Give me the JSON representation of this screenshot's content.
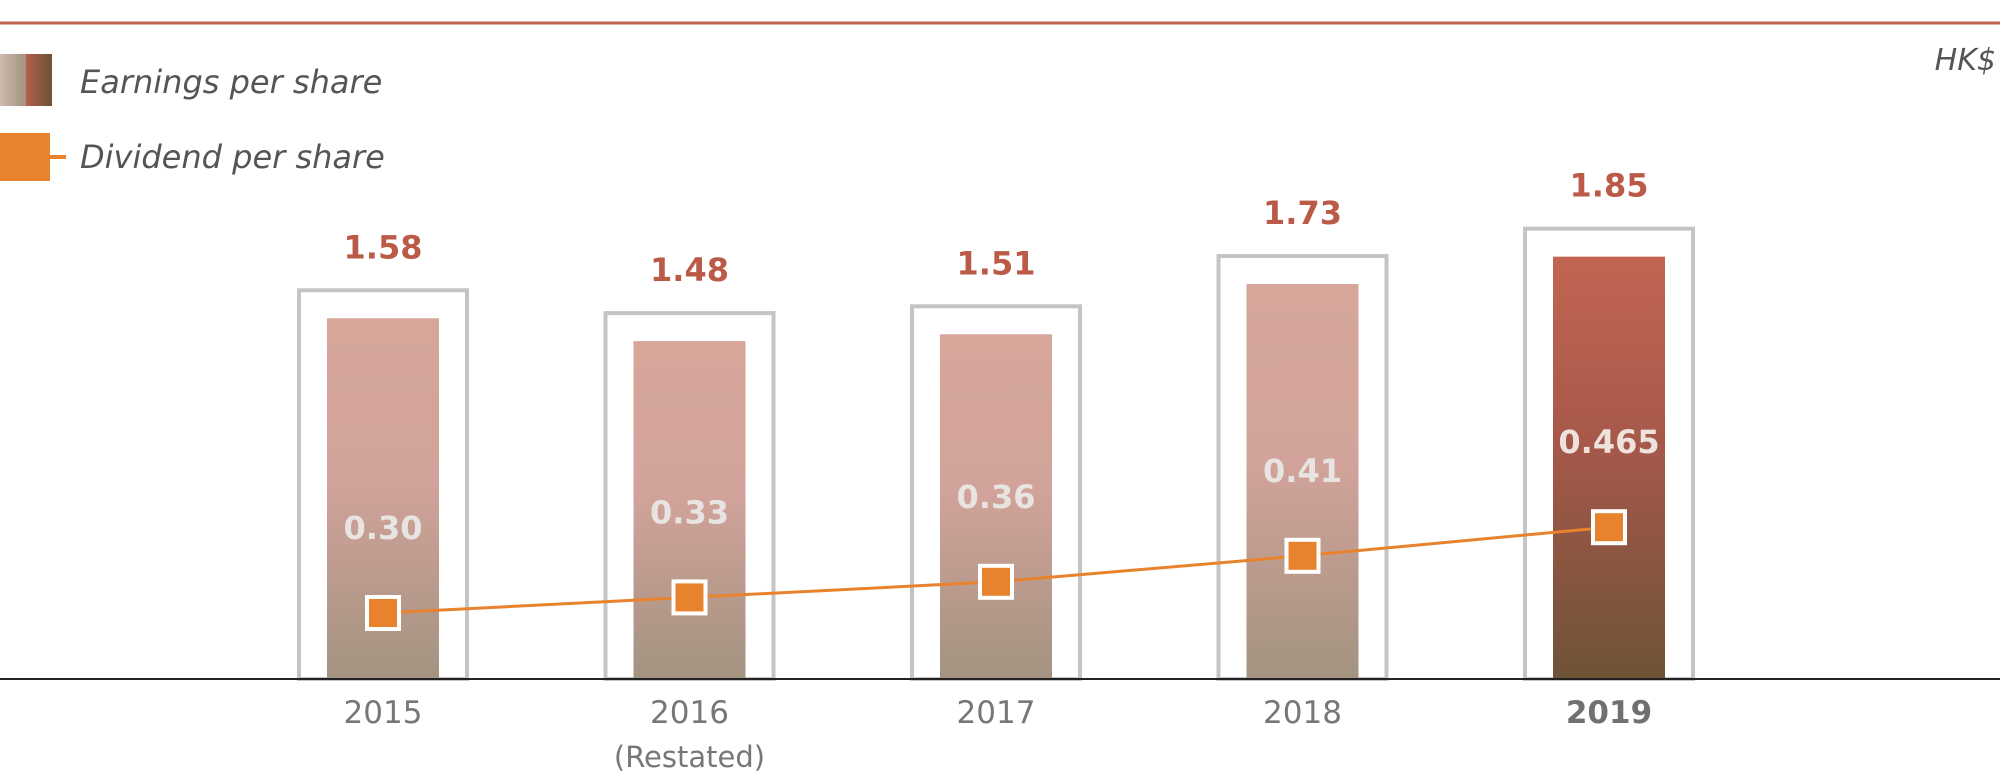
{
  "unit_label": "HK$",
  "legend": {
    "eps_label": "Earnings per share",
    "dps_label": "Dividend per share"
  },
  "colors": {
    "top_rule": "#c1654f",
    "bar_past_top": "#d6a69b",
    "bar_past_bottom": "#a39380",
    "bar_latest_top": "#c26552",
    "bar_latest_bottom": "#6e5337",
    "frame": "#c4c4c4",
    "dps_line": "#e8822c",
    "eps_text": "#bb5a47",
    "axis": "#222222"
  },
  "chart_data": {
    "type": "bar",
    "categories": [
      "2015",
      "2016",
      "2017",
      "2018",
      "2019"
    ],
    "category_sublabels": [
      "",
      "(Restated)",
      "",
      "",
      ""
    ],
    "highlight_category": "2019",
    "series": [
      {
        "name": "Earnings per share",
        "type": "bar",
        "values": [
          1.58,
          1.48,
          1.51,
          1.73,
          1.85
        ],
        "value_labels": [
          "1.58",
          "1.48",
          "1.51",
          "1.73",
          "1.85"
        ]
      },
      {
        "name": "Dividend per share",
        "type": "line",
        "values": [
          0.3,
          0.33,
          0.36,
          0.41,
          0.465
        ],
        "value_labels": [
          "0.30",
          "0.33",
          "0.36",
          "0.41",
          "0.465"
        ]
      }
    ],
    "unit": "HK$",
    "ylim": [
      0,
      1.9
    ],
    "grid": false,
    "legend_position": "top-left"
  }
}
